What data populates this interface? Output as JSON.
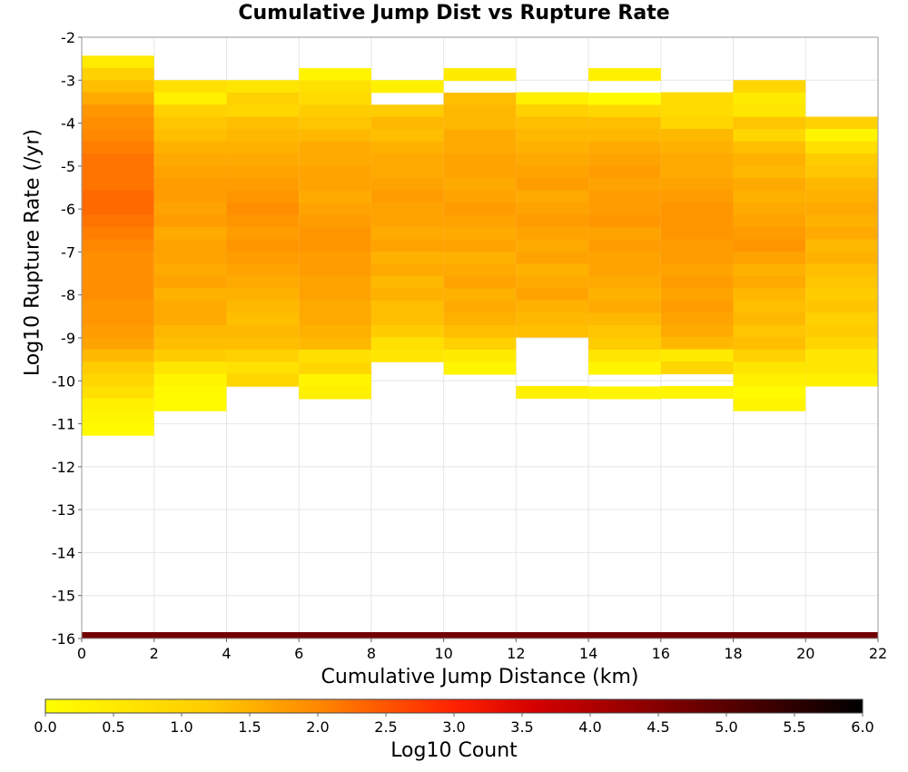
{
  "chart_data": {
    "type": "heatmap",
    "title": "Cumulative Jump Dist vs Rupture Rate",
    "xlabel": "Cumulative Jump Distance (km)",
    "ylabel": "Log10 Rupture Rate (/yr)",
    "xlim": [
      0,
      22
    ],
    "ylim": [
      -16,
      -2
    ],
    "x_ticks": [
      "0",
      "2",
      "4",
      "6",
      "8",
      "10",
      "12",
      "14",
      "16",
      "18",
      "20",
      "22"
    ],
    "y_ticks": [
      "-2",
      "-3",
      "-4",
      "-5",
      "-6",
      "-7",
      "-8",
      "-9",
      "-10",
      "-11",
      "-12",
      "-13",
      "-14",
      "-15",
      "-16"
    ],
    "x_bin_width": 2,
    "y_bin_height": 0.285,
    "grid": true,
    "colorbar": {
      "label": "Log10 Count",
      "range": [
        0.0,
        6.0
      ],
      "ticks": [
        "0.0",
        "0.5",
        "1.0",
        "1.5",
        "2.0",
        "2.5",
        "3.0",
        "3.5",
        "4.0",
        "4.5",
        "5.0",
        "5.5",
        "6.0"
      ],
      "placement": "bottom",
      "colors": [
        "#ffff00",
        "#ff9900",
        "#ff3300",
        "#cc0000",
        "#5a0000",
        "#000000"
      ]
    },
    "columns": [
      {
        "x_start": 0,
        "y_top": -2.43,
        "values": [
          0.4,
          0.9,
          1.2,
          1.5,
          1.8,
          1.9,
          2.0,
          2.1,
          2.2,
          2.2,
          2.2,
          2.3,
          2.3,
          2.2,
          2.1,
          2.0,
          1.9,
          1.9,
          1.9,
          1.9,
          1.8,
          1.8,
          1.7,
          1.6,
          1.3,
          1.0,
          0.8,
          0.6,
          0.3,
          0.2,
          0.1
        ]
      },
      {
        "x_start": 2,
        "y_top": -3.0,
        "values": [
          0.6,
          0.3,
          0.9,
          1.1,
          1.2,
          1.4,
          1.5,
          1.6,
          1.7,
          1.7,
          1.6,
          1.7,
          1.5,
          1.6,
          1.6,
          1.5,
          1.6,
          1.4,
          1.5,
          1.5,
          1.3,
          1.2,
          1.0,
          0.5,
          0.2,
          0.1,
          0.1
        ]
      },
      {
        "x_start": 4,
        "y_top": -3.0,
        "values": [
          0.5,
          0.9,
          0.8,
          1.2,
          1.3,
          1.4,
          1.5,
          1.6,
          1.7,
          1.8,
          1.9,
          1.8,
          1.7,
          1.8,
          1.7,
          1.6,
          1.5,
          1.4,
          1.3,
          1.2,
          1.3,
          1.2,
          0.9,
          0.6,
          0.8
        ]
      },
      {
        "x_start": 6,
        "y_top": -2.72,
        "values": [
          0.2,
          0.6,
          0.7,
          1.0,
          1.1,
          1.3,
          1.5,
          1.5,
          1.6,
          1.6,
          1.5,
          1.6,
          1.7,
          1.8,
          1.8,
          1.7,
          1.7,
          1.6,
          1.6,
          1.5,
          1.5,
          1.4,
          1.3,
          0.6,
          0.8,
          0.2,
          0.3
        ]
      },
      {
        "x_start": 8,
        "y_top": -3.0,
        "values": [
          0.3,
          null,
          1.0,
          1.3,
          1.2,
          1.4,
          1.5,
          1.5,
          1.6,
          1.7,
          1.6,
          1.6,
          1.5,
          1.6,
          1.4,
          1.5,
          1.3,
          1.4,
          1.2,
          1.2,
          1.0,
          0.6,
          0.5
        ]
      },
      {
        "x_start": 10,
        "y_top": -2.72,
        "values": [
          0.4,
          null,
          1.2,
          1.3,
          1.3,
          1.5,
          1.5,
          1.6,
          1.6,
          1.5,
          1.6,
          1.7,
          1.6,
          1.5,
          1.6,
          1.4,
          1.5,
          1.6,
          1.4,
          1.5,
          1.4,
          1.2,
          0.9,
          0.4,
          0.2
        ]
      },
      {
        "x_start": 12,
        "y_top": -3.28,
        "values": [
          0.3,
          0.9,
          1.2,
          1.3,
          1.4,
          1.5,
          1.6,
          1.7,
          1.5,
          1.6,
          1.7,
          1.6,
          1.5,
          1.6,
          1.4,
          1.5,
          1.6,
          1.4,
          1.3,
          1.2,
          null,
          null,
          null,
          null,
          0.3
        ]
      },
      {
        "x_start": 14,
        "y_top": -2.72,
        "values": [
          0.3,
          null,
          0.1,
          0.8,
          1.2,
          1.3,
          1.5,
          1.6,
          1.7,
          1.6,
          1.7,
          1.7,
          1.8,
          1.6,
          1.7,
          1.6,
          1.6,
          1.5,
          1.4,
          1.5,
          1.3,
          1.1,
          1.0,
          0.5,
          0.2,
          null,
          0.2
        ]
      },
      {
        "x_start": 16,
        "y_top": -3.28,
        "values": [
          0.7,
          0.7,
          0.8,
          1.3,
          1.4,
          1.5,
          1.5,
          1.6,
          1.7,
          1.8,
          1.8,
          1.8,
          1.7,
          1.7,
          1.6,
          1.7,
          1.6,
          1.7,
          1.6,
          1.5,
          1.3,
          0.4,
          0.8,
          null,
          0.2
        ]
      },
      {
        "x_start": 18,
        "y_top": -3.0,
        "values": [
          0.8,
          0.4,
          0.5,
          1.1,
          0.8,
          1.2,
          1.4,
          1.3,
          1.5,
          1.4,
          1.5,
          1.6,
          1.7,
          1.8,
          1.6,
          1.4,
          1.5,
          1.3,
          1.2,
          1.3,
          1.1,
          1.2,
          0.9,
          0.5,
          0.3,
          0.1,
          0.2
        ]
      },
      {
        "x_start": 20,
        "y_top": -3.85,
        "values": [
          0.9,
          0.2,
          0.6,
          1.0,
          1.1,
          1.3,
          1.4,
          1.5,
          1.4,
          1.5,
          1.3,
          1.4,
          1.2,
          1.1,
          1.0,
          1.1,
          0.9,
          1.0,
          0.8,
          0.5,
          0.5,
          0.3
        ]
      }
    ],
    "bottom_band": {
      "y": -16,
      "value": 4.7
    }
  }
}
